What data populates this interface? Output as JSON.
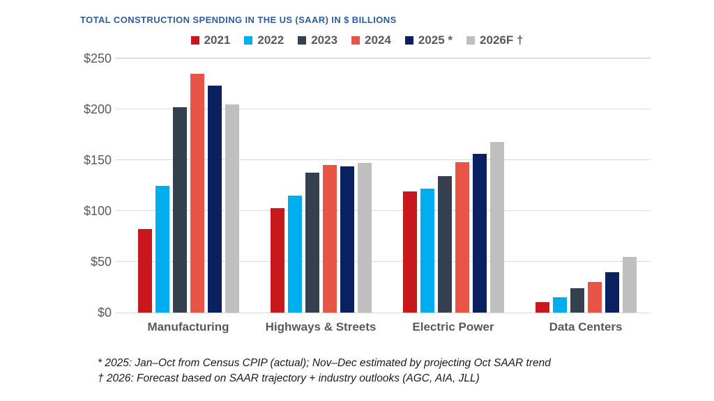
{
  "title": "TOTAL CONSTRUCTION SPENDING IN THE US (SAAR) IN $ BILLIONS",
  "accent_color": "#2E5C9E",
  "text_color": "#595959",
  "chart_data": {
    "type": "bar",
    "title": "TOTAL CONSTRUCTION SPENDING IN THE US (SAAR) IN $ BILLIONS",
    "categories": [
      "Manufacturing",
      "Highways & Streets",
      "Electric Power",
      "Data Centers"
    ],
    "series": [
      {
        "name": "2021",
        "color": "#C8171D",
        "values": [
          82,
          103,
          119,
          10
        ]
      },
      {
        "name": "2022",
        "color": "#00AEEF",
        "values": [
          125,
          115,
          122,
          15
        ]
      },
      {
        "name": "2023",
        "color": "#363F4E",
        "values": [
          202,
          138,
          134,
          24
        ]
      },
      {
        "name": "2024",
        "color": "#E85546",
        "values": [
          235,
          145,
          148,
          30
        ]
      },
      {
        "name": "2025 *",
        "color": "#0A2161",
        "values": [
          223,
          144,
          156,
          40
        ]
      },
      {
        "name": "2026F †",
        "color": "#BFBFBF",
        "values": [
          205,
          147,
          168,
          55
        ]
      }
    ],
    "xlabel": "",
    "ylabel": "",
    "ylim": [
      0,
      250
    ],
    "ytick_interval": 50,
    "ytick_labels": [
      "$0",
      "$50",
      "$100",
      "$150",
      "$200",
      "$250"
    ],
    "grid": true,
    "legend_position": "top"
  },
  "footnotes": [
    "* 2025: Jan–Oct from Census CPIP (actual); Nov–Dec estimated by projecting Oct SAAR trend",
    "† 2026: Forecast based on SAAR trajectory + industry outlooks (AGC, AIA, JLL)"
  ]
}
